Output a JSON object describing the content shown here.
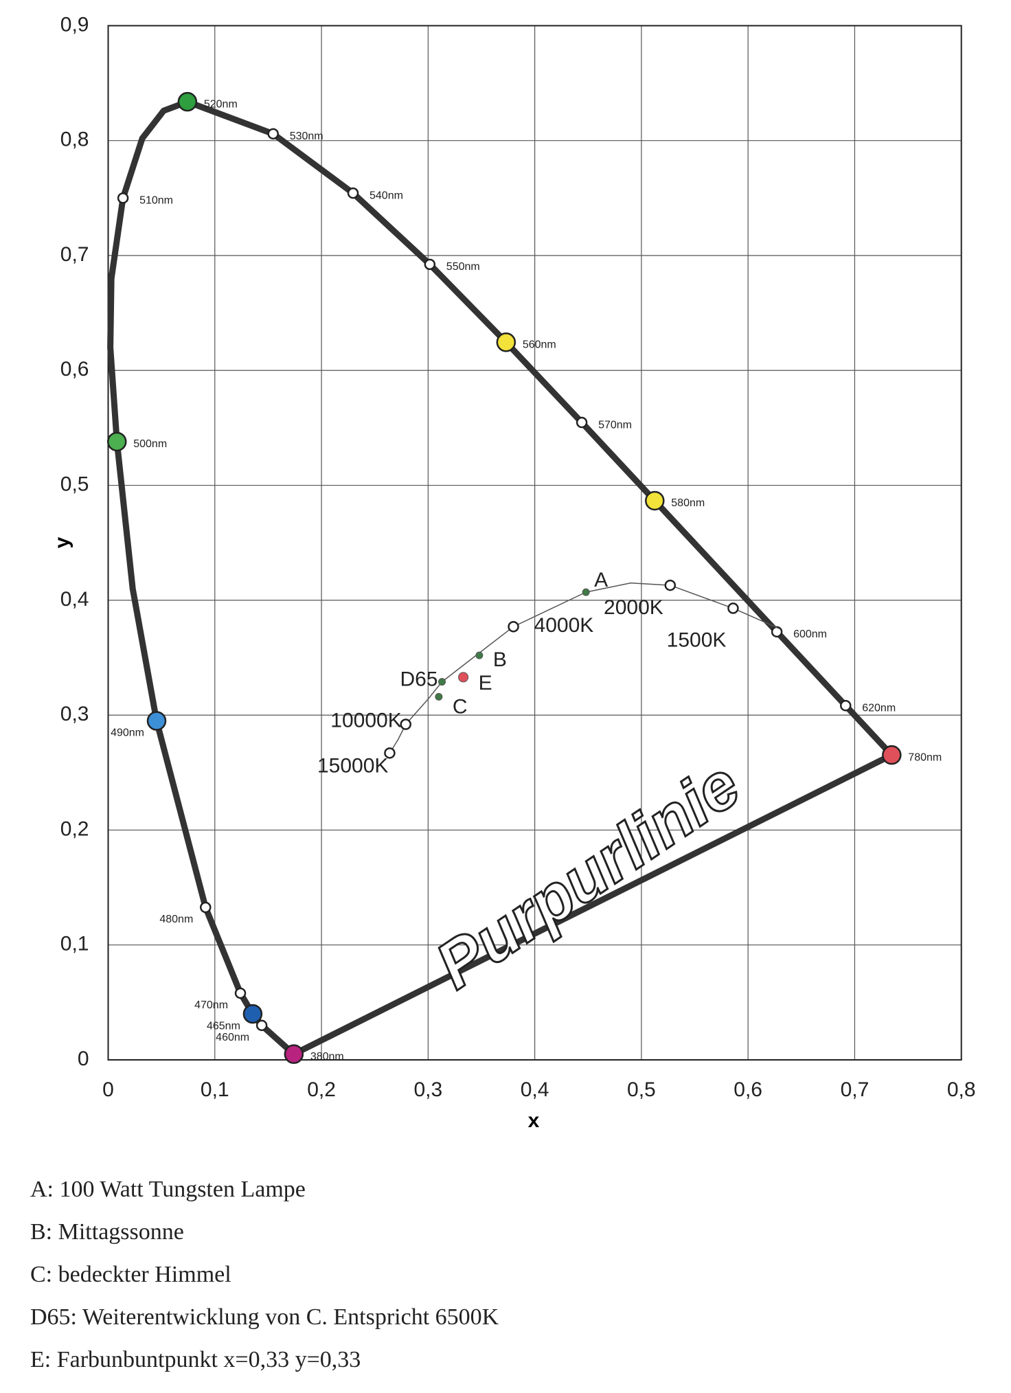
{
  "chart_data": {
    "type": "line",
    "x_label": "x",
    "y_label": "y",
    "xlim": [
      0,
      0.8
    ],
    "ylim": [
      0,
      0.9
    ],
    "xticks": [
      0,
      {
        "value": 0.1,
        "label": "0,1"
      },
      {
        "value": 0.2,
        "label": "0,2"
      },
      {
        "value": 0.3,
        "label": "0,3"
      },
      {
        "value": 0.4,
        "label": "0,4"
      },
      {
        "value": 0.5,
        "label": "0,5"
      },
      {
        "value": 0.6,
        "label": "0,6"
      },
      {
        "value": 0.7,
        "label": "0,7"
      },
      {
        "value": 0.8,
        "label": "0,8"
      }
    ],
    "yticks": [
      0,
      {
        "value": 0.1,
        "label": "0,1"
      },
      {
        "value": 0.2,
        "label": "0,2"
      },
      {
        "value": 0.3,
        "label": "0,3"
      },
      {
        "value": 0.4,
        "label": "0,4"
      },
      {
        "value": 0.5,
        "label": "0,5"
      },
      {
        "value": 0.6,
        "label": "0,6"
      },
      {
        "value": 0.7,
        "label": "0,7"
      },
      {
        "value": 0.8,
        "label": "0,8"
      },
      {
        "value": 0.9,
        "label": "0,9"
      }
    ],
    "grid": true,
    "annotation": "Purpurlinie",
    "series": [
      {
        "color": "#333333",
        "x": [
          0.1741,
          0.144,
          0.1355,
          0.124,
          0.0913,
          0.0454,
          0.023,
          0.0082,
          0.002,
          0.003,
          0.0139,
          0.032,
          0.052,
          0.0743,
          0.1547,
          0.2296,
          0.3016,
          0.3731,
          0.4441,
          0.5125,
          0.627,
          0.6915,
          0.7347
        ],
        "values": [
          0.005,
          0.03,
          0.04,
          0.058,
          0.1327,
          0.295,
          0.41,
          0.538,
          0.62,
          0.68,
          0.75,
          0.802,
          0.826,
          0.8338,
          0.8059,
          0.7543,
          0.6923,
          0.6245,
          0.5547,
          0.4866,
          0.3725,
          0.3083,
          0.2653
        ],
        "point_labels": [
          "380nm",
          "460nm",
          "465nm",
          "470nm",
          "480nm",
          "490nm",
          null,
          "500nm",
          null,
          null,
          "510nm",
          null,
          null,
          "520nm",
          "530nm",
          "540nm",
          "550nm",
          "560nm",
          "570nm",
          "580nm",
          "600nm",
          "620nm",
          "780nm"
        ],
        "marker_colors": [
          "#b8237f",
          "#ffffff",
          "#1f5fb0",
          "#ffffff",
          "#ffffff",
          "#3d8fd6",
          null,
          "#4caf50",
          null,
          null,
          "#ffffff",
          null,
          null,
          "#2e9e3e",
          "#ffffff",
          "#ffffff",
          "#ffffff",
          "#f2e23a",
          "#ffffff",
          "#f2e23a",
          "#ffffff",
          "#ffffff",
          "#e0505a"
        ]
      },
      {
        "color": "#555555",
        "x": [
          0.264,
          0.272,
          0.279,
          0.3,
          0.313,
          0.345,
          0.38,
          0.448,
          0.49,
          0.527,
          0.586,
          0.63
        ],
        "values": [
          0.267,
          0.279,
          0.292,
          0.314,
          0.329,
          0.352,
          0.377,
          0.407,
          0.415,
          0.413,
          0.393,
          0.375
        ],
        "point_labels": [
          "15000K",
          null,
          "10000K",
          null,
          null,
          null,
          "4000K",
          null,
          null,
          "2000K",
          "1500K",
          null
        ]
      },
      {
        "type": "scatter",
        "x": [
          0.448,
          0.348,
          0.31,
          0.313,
          0.333
        ],
        "values": [
          0.407,
          0.352,
          0.316,
          0.329,
          0.333
        ],
        "point_labels": [
          "A",
          "B",
          "C",
          "D65",
          "E"
        ],
        "colors": [
          "#3f7a47",
          "#3f7a47",
          "#3f7a47",
          "#3f7a47",
          "#e0505a"
        ]
      }
    ]
  },
  "notes": [
    "A: 100 Watt Tungsten Lampe",
    "B: Mittagssonne",
    "C: bedeckter Himmel",
    "D65: Weiterentwicklung von C. Entspricht 6500K",
    "E: Farbunbuntpunkt x=0,33 y=0,33"
  ]
}
